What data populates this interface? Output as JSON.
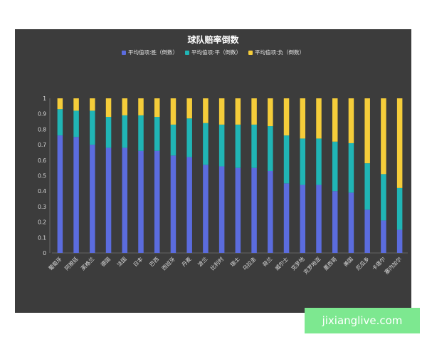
{
  "chart_data": {
    "type": "bar",
    "stacked": true,
    "title": "球队赔率倒数",
    "categories": [
      "葡萄牙",
      "阿根廷",
      "英格兰",
      "德国",
      "法国",
      "日本",
      "巴西",
      "西班牙",
      "丹麦",
      "波兰",
      "比利时",
      "瑞士",
      "乌拉圭",
      "荷兰",
      "威尔士",
      "克罗地",
      "克罗地亚",
      "墨西哥",
      "美国",
      "厄瓜多",
      "卡塔尔",
      "塞内加尔"
    ],
    "series": [
      {
        "name": "平均值项:胜（倒数）",
        "color": "#5b6cde",
        "values": [
          0.76,
          0.75,
          0.7,
          0.68,
          0.68,
          0.66,
          0.66,
          0.63,
          0.62,
          0.57,
          0.56,
          0.55,
          0.55,
          0.53,
          0.45,
          0.44,
          0.44,
          0.4,
          0.39,
          0.28,
          0.21,
          0.15
        ]
      },
      {
        "name": "平均值项:平（倒数）",
        "color": "#20b5b5",
        "values": [
          0.17,
          0.17,
          0.22,
          0.2,
          0.21,
          0.23,
          0.22,
          0.2,
          0.25,
          0.27,
          0.27,
          0.28,
          0.28,
          0.29,
          0.31,
          0.3,
          0.3,
          0.32,
          0.32,
          0.3,
          0.3,
          0.27
        ]
      },
      {
        "name": "平均值项:负（倒数）",
        "color": "#f5cd3a",
        "values": [
          0.07,
          0.08,
          0.08,
          0.12,
          0.11,
          0.11,
          0.12,
          0.17,
          0.13,
          0.16,
          0.17,
          0.17,
          0.17,
          0.18,
          0.24,
          0.26,
          0.26,
          0.28,
          0.29,
          0.42,
          0.49,
          0.58
        ]
      }
    ],
    "ylim": [
      0,
      1
    ],
    "yticks": [
      "0",
      "0.1",
      "0.2",
      "0.3",
      "0.4",
      "0.5",
      "0.6",
      "0.7",
      "0.8",
      "0.9",
      "1"
    ],
    "legend_position": "top-center",
    "grid": false,
    "background": "#3c3c3c"
  },
  "watermark": "jixianglive.com"
}
